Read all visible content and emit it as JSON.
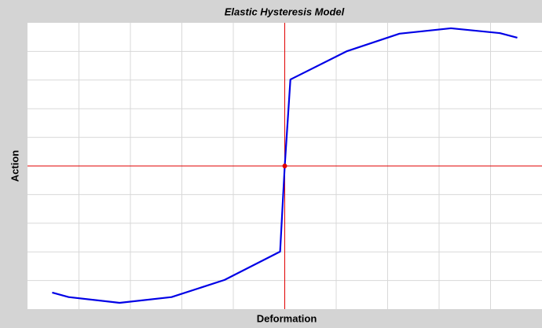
{
  "chart_data": {
    "type": "line",
    "title": "Elastic Hysteresis Model",
    "x_label": "Deformation",
    "y_label": "Action",
    "x": [
      -4.52,
      -4.2,
      -3.21,
      -2.2,
      -1.17,
      -0.09,
      0,
      0.11,
      1.21,
      2.23,
      3.23,
      4.18,
      4.52
    ],
    "series": [
      {
        "color": "#0000e6",
        "values": [
          -4.42,
          -4.58,
          -4.78,
          -4.58,
          -3.98,
          -2.99,
          0,
          3.02,
          4.01,
          4.62,
          4.81,
          4.64,
          4.48
        ]
      }
    ],
    "xlim": [
      -5,
      5
    ],
    "ylim": [
      -5,
      5
    ],
    "xticks": [
      -4,
      -3,
      -2,
      -1,
      0,
      1,
      2,
      3,
      4
    ],
    "yticks": [
      -4,
      -3,
      -2,
      -1,
      0,
      1,
      2,
      3,
      4
    ],
    "grid": true,
    "axis_color": "#e00000"
  }
}
